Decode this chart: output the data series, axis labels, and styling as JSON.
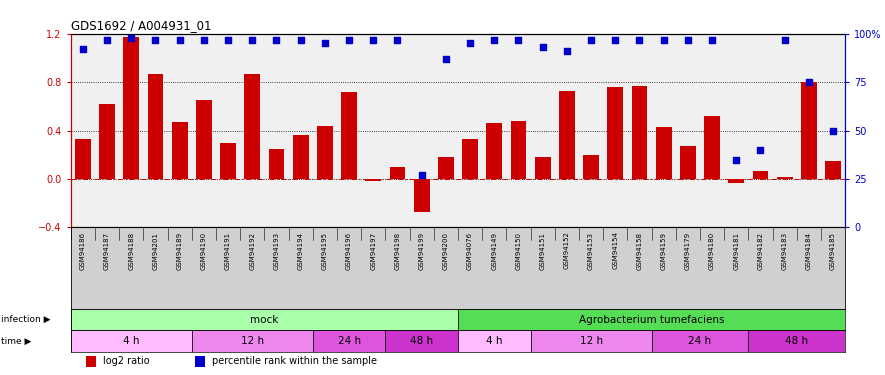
{
  "title": "GDS1692 / A004931_01",
  "samples": [
    "GSM94186",
    "GSM94187",
    "GSM94188",
    "GSM94201",
    "GSM94189",
    "GSM94190",
    "GSM94191",
    "GSM94192",
    "GSM94193",
    "GSM94194",
    "GSM94195",
    "GSM94196",
    "GSM94197",
    "GSM94198",
    "GSM94199",
    "GSM94200",
    "GSM94076",
    "GSM94149",
    "GSM94150",
    "GSM94151",
    "GSM94152",
    "GSM94153",
    "GSM94154",
    "GSM94158",
    "GSM94159",
    "GSM94179",
    "GSM94180",
    "GSM94181",
    "GSM94182",
    "GSM94183",
    "GSM94184",
    "GSM94185"
  ],
  "log2_ratio": [
    0.33,
    0.62,
    1.17,
    0.87,
    0.47,
    0.65,
    0.3,
    0.87,
    0.25,
    0.36,
    0.44,
    0.72,
    -0.02,
    0.1,
    -0.27,
    0.18,
    0.33,
    0.46,
    0.48,
    0.18,
    0.73,
    0.2,
    0.76,
    0.77,
    0.43,
    0.27,
    0.52,
    -0.03,
    0.07,
    0.02,
    0.8,
    0.15
  ],
  "percentile_rank": [
    92,
    97,
    98,
    97,
    97,
    97,
    97,
    97,
    97,
    97,
    95,
    97,
    97,
    97,
    27,
    87,
    95,
    97,
    97,
    93,
    91,
    97,
    97,
    97,
    97,
    97,
    97,
    35,
    40,
    97,
    75,
    50
  ],
  "bar_color": "#cc0000",
  "dot_color": "#0000cc",
  "ylim_left": [
    -0.4,
    1.2
  ],
  "ylim_right": [
    0,
    100
  ],
  "yticks_left": [
    -0.4,
    0.0,
    0.4,
    0.8,
    1.2
  ],
  "yticks_right": [
    0,
    25,
    50,
    75,
    100
  ],
  "hlines": [
    0.0,
    0.4,
    0.8
  ],
  "infection_groups": [
    {
      "label": "mock",
      "start": 0,
      "end": 15,
      "color": "#aaffaa"
    },
    {
      "label": "Agrobacterium tumefaciens",
      "start": 16,
      "end": 31,
      "color": "#55dd55"
    }
  ],
  "time_groups": [
    {
      "label": "4 h",
      "start": 0,
      "end": 4,
      "color": "#ffbbff"
    },
    {
      "label": "12 h",
      "start": 5,
      "end": 9,
      "color": "#ee88ee"
    },
    {
      "label": "24 h",
      "start": 10,
      "end": 12,
      "color": "#dd55dd"
    },
    {
      "label": "48 h",
      "start": 13,
      "end": 15,
      "color": "#cc33cc"
    },
    {
      "label": "4 h",
      "start": 16,
      "end": 18,
      "color": "#ffbbff"
    },
    {
      "label": "12 h",
      "start": 19,
      "end": 23,
      "color": "#ee88ee"
    },
    {
      "label": "24 h",
      "start": 24,
      "end": 27,
      "color": "#dd55dd"
    },
    {
      "label": "48 h",
      "start": 28,
      "end": 31,
      "color": "#cc33cc"
    }
  ],
  "infection_label": "infection",
  "time_label": "time",
  "legend_bar_label": "log2 ratio",
  "legend_dot_label": "percentile rank within the sample",
  "chart_bg": "#f0f0f0",
  "label_bg": "#d0d0d0"
}
